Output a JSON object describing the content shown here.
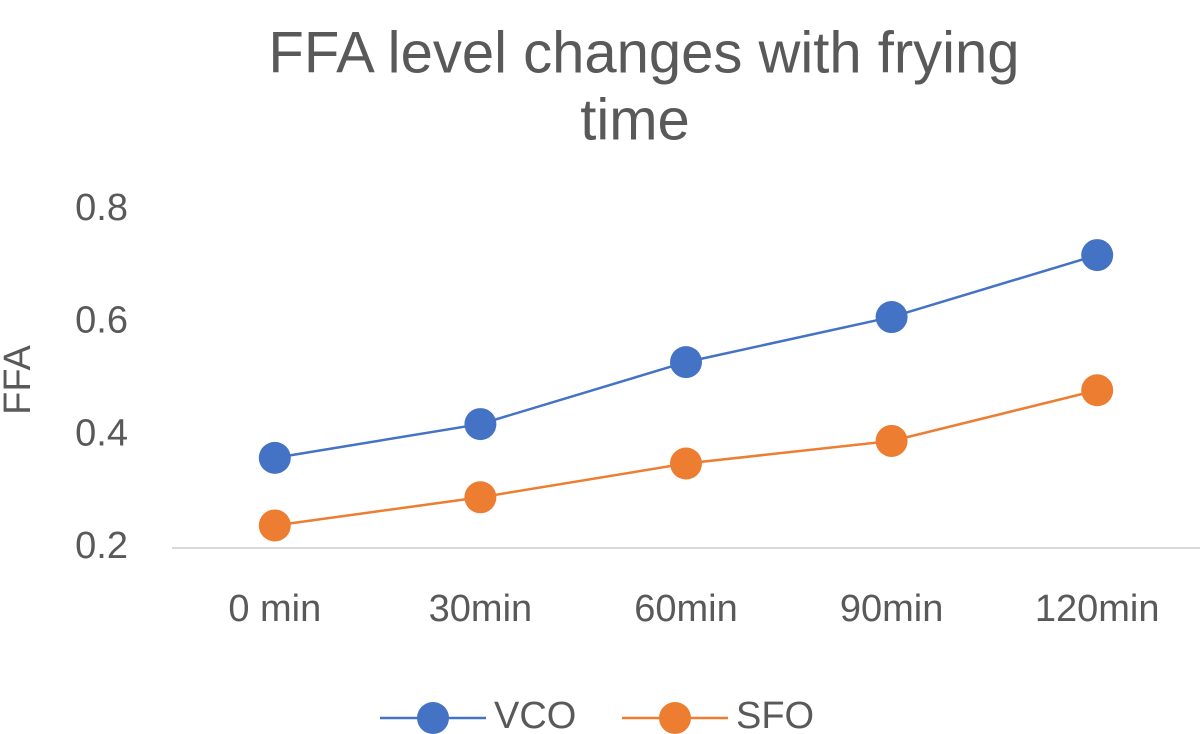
{
  "chart_data": {
    "type": "line",
    "title_lines": [
      "FFA level changes with frying",
      "time"
    ],
    "xlabel": "",
    "ylabel": "FFA",
    "categories": [
      "0 min",
      "30min",
      "60min",
      "90min",
      "120min"
    ],
    "ylim": [
      0.2,
      0.8
    ],
    "yticks": [
      0.2,
      0.4,
      0.6,
      0.8
    ],
    "ytick_labels": [
      "0.2",
      "0.4",
      "0.6",
      "0.8"
    ],
    "grid": false,
    "legend_position": "bottom",
    "series": [
      {
        "name": "VCO",
        "color": "#4472C4",
        "values": [
          0.36,
          0.42,
          0.53,
          0.61,
          0.72
        ]
      },
      {
        "name": "SFO",
        "color": "#ED7D31",
        "values": [
          0.24,
          0.29,
          0.35,
          0.39,
          0.48
        ]
      }
    ]
  }
}
